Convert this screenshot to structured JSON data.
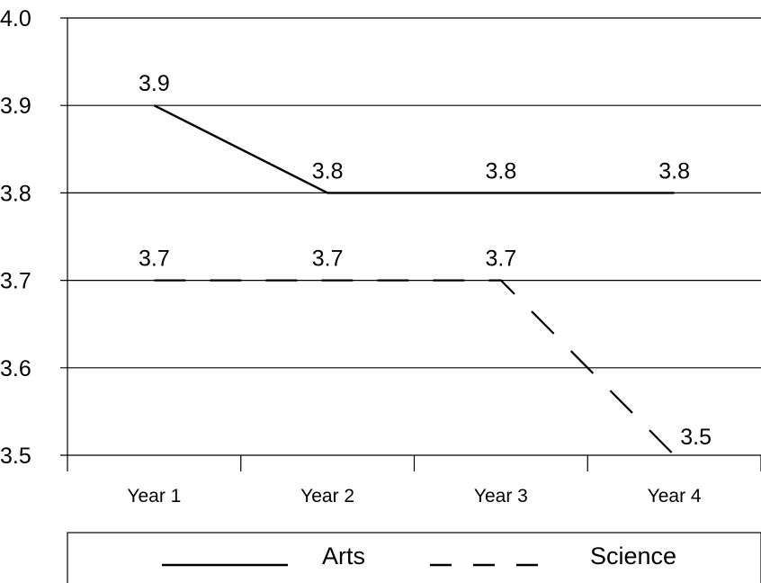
{
  "chart_data": {
    "type": "line",
    "title": "",
    "xlabel": "",
    "ylabel": "",
    "categories": [
      "Year 1",
      "Year 2",
      "Year 3",
      "Year 4"
    ],
    "ylim": [
      3.5,
      4.0
    ],
    "yticks": [
      "3.5",
      "3.6",
      "3.7",
      "3.8",
      "3.9",
      "4.0"
    ],
    "grid": true,
    "legend_position": "bottom",
    "series": [
      {
        "name": "Arts",
        "style": "solid",
        "color": "#000000",
        "values": [
          3.9,
          3.8,
          3.8,
          3.8
        ],
        "labels": [
          "3.9",
          "3.8",
          "3.8",
          "3.8"
        ]
      },
      {
        "name": "Science",
        "style": "dashed",
        "color": "#000000",
        "values": [
          3.7,
          3.7,
          3.7,
          3.5
        ],
        "labels": [
          "3.7",
          "3.7",
          "3.7",
          "3.5"
        ]
      }
    ]
  }
}
